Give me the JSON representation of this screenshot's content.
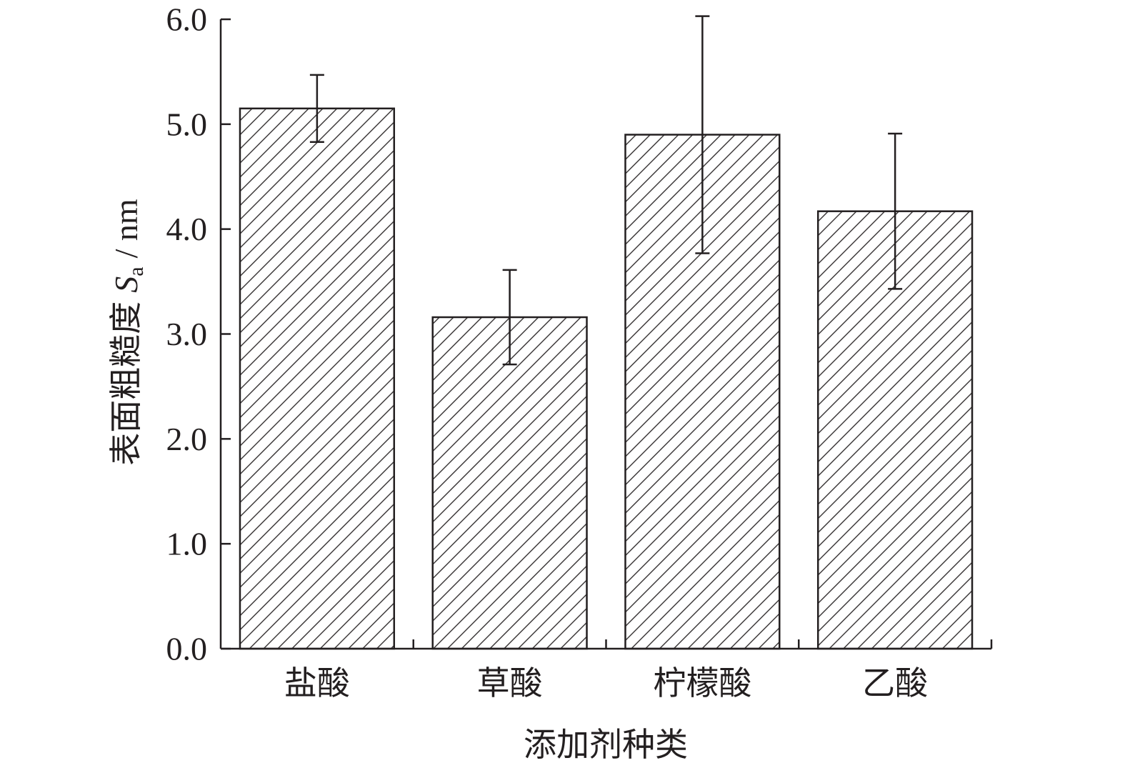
{
  "chart_data": {
    "type": "bar",
    "categories": [
      "盐酸",
      "草酸",
      "柠檬酸",
      "乙酸"
    ],
    "values": [
      5.15,
      3.16,
      4.9,
      4.17
    ],
    "error": [
      0.32,
      0.45,
      1.13,
      0.74
    ],
    "xlabel": "添加剂种类",
    "ylabel": {
      "text": "表面粗糙度",
      "symbol": "S",
      "subscript": "a",
      "unit": "/ nm"
    },
    "ylim": [
      0,
      6
    ],
    "ytick_labels": [
      "0.0",
      "1.0",
      "2.0",
      "3.0",
      "4.0",
      "5.0",
      "6.0"
    ],
    "grid": false,
    "legend": false,
    "bar_fill": "diagonal-hatch",
    "error_bars": true
  },
  "colors": {
    "ink": "#231f20",
    "background": "#ffffff"
  }
}
